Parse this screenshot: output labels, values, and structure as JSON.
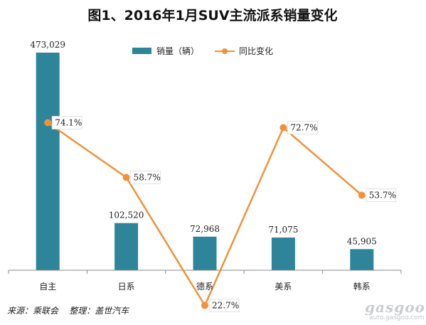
{
  "chart_data": {
    "type": "bar",
    "title": "图1、2016年1月SUV主流派系销量变化",
    "categories": [
      "自主",
      "日系",
      "德系",
      "美系",
      "韩系"
    ],
    "series": [
      {
        "name": "销量（辆）",
        "type": "bar",
        "values": [
          473029,
          102520,
          72968,
          71075,
          45905
        ],
        "labels": [
          "473,029",
          "102,520",
          "72,968",
          "71,075",
          "45,905"
        ]
      },
      {
        "name": "同比变化",
        "type": "line",
        "values": [
          74.1,
          58.7,
          22.7,
          72.7,
          53.7
        ],
        "labels": [
          "74.1%",
          "58.7%",
          "22.7%",
          "72.7%",
          "53.7%"
        ]
      }
    ],
    "ylim": [
      0,
      473029
    ],
    "y2lim": [
      0,
      100
    ],
    "legend": "top-center",
    "grid": false,
    "colors": {
      "bar": "#2e8599",
      "line": "#f0923a"
    }
  },
  "source": "来源：乘联会    整理：盖世汽车",
  "logo": {
    "main": "gasgoo",
    "url": "auto.gasgoo.com"
  }
}
